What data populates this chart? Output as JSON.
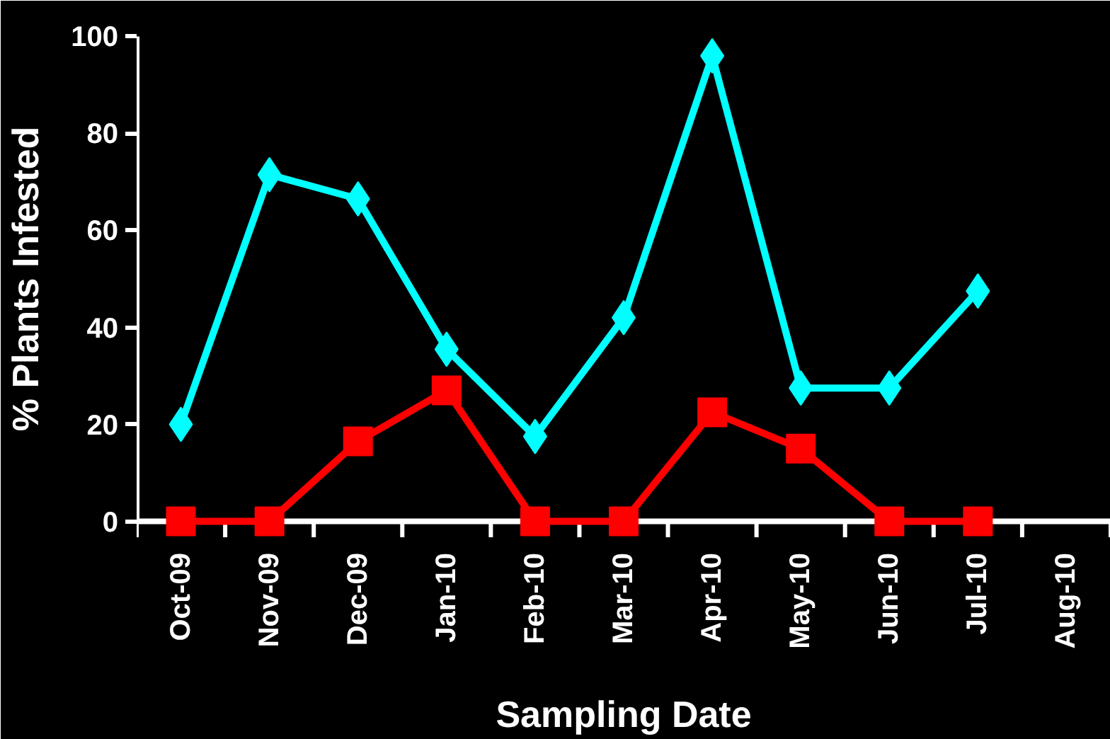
{
  "chart_data": {
    "type": "line",
    "xlabel": "Sampling Date",
    "ylabel": "% Plants Infested",
    "categories": [
      "Oct-09",
      "Nov-09",
      "Dec-09",
      "Jan-10",
      "Feb-10",
      "Mar-10",
      "Apr-10",
      "May-10",
      "Jun-10",
      "Jul-10",
      "Aug-10"
    ],
    "series": [
      {
        "color": "#00ffff",
        "marker": "diamond",
        "values": [
          20,
          71.5,
          66.5,
          35.5,
          17.5,
          42,
          96,
          27.5,
          27.5,
          47.5,
          null
        ]
      },
      {
        "color": "#ff0000",
        "marker": "square",
        "values": [
          0,
          0,
          16.5,
          27,
          0,
          0,
          22.5,
          15,
          0,
          0,
          null
        ]
      }
    ],
    "ylim": [
      0,
      100
    ],
    "yticks": [
      0,
      20,
      40,
      60,
      80,
      100
    ],
    "grid": false,
    "line_style": "solid"
  }
}
